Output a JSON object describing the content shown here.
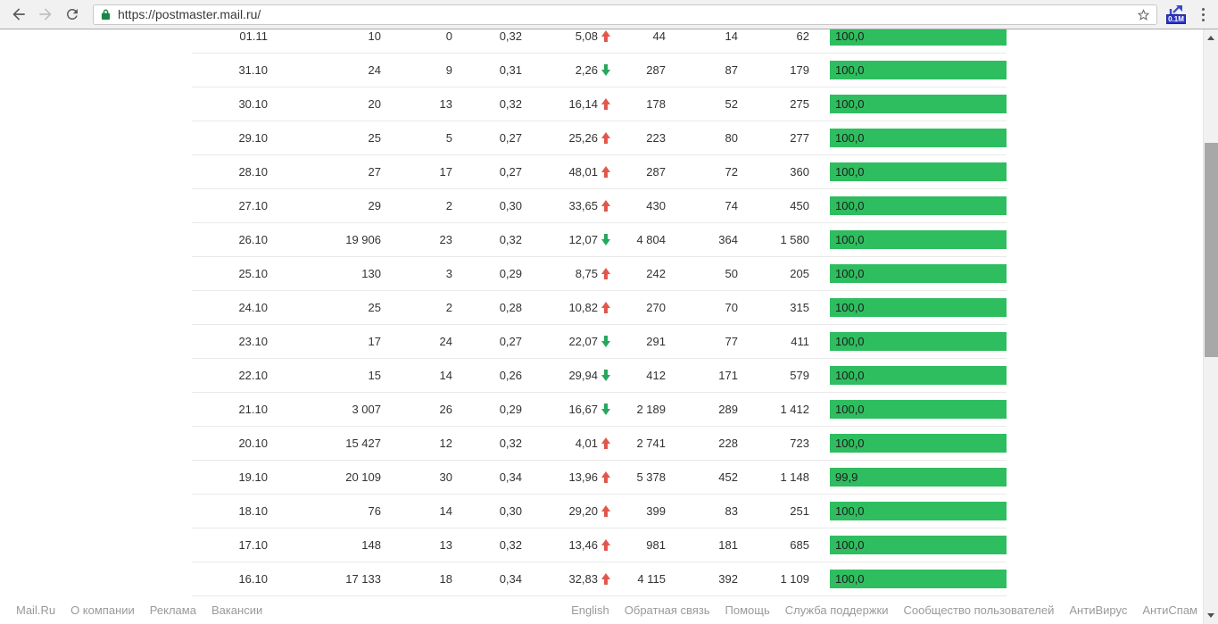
{
  "browser": {
    "url": "https://postmaster.mail.ru/",
    "extension_badge": "0.1M"
  },
  "table": {
    "rows": [
      {
        "date": "01.11",
        "c1": "10",
        "c2": "0",
        "c3": "0,32",
        "trend": "5,08",
        "trend_dir": "up",
        "c4": "44",
        "c5": "14",
        "c6": "62",
        "bar_label": "100,0",
        "bar_percent": 100
      },
      {
        "date": "31.10",
        "c1": "24",
        "c2": "9",
        "c3": "0,31",
        "trend": "2,26",
        "trend_dir": "down",
        "c4": "287",
        "c5": "87",
        "c6": "179",
        "bar_label": "100,0",
        "bar_percent": 100
      },
      {
        "date": "30.10",
        "c1": "20",
        "c2": "13",
        "c3": "0,32",
        "trend": "16,14",
        "trend_dir": "up",
        "c4": "178",
        "c5": "52",
        "c6": "275",
        "bar_label": "100,0",
        "bar_percent": 100
      },
      {
        "date": "29.10",
        "c1": "25",
        "c2": "5",
        "c3": "0,27",
        "trend": "25,26",
        "trend_dir": "up",
        "c4": "223",
        "c5": "80",
        "c6": "277",
        "bar_label": "100,0",
        "bar_percent": 100
      },
      {
        "date": "28.10",
        "c1": "27",
        "c2": "17",
        "c3": "0,27",
        "trend": "48,01",
        "trend_dir": "up",
        "c4": "287",
        "c5": "72",
        "c6": "360",
        "bar_label": "100,0",
        "bar_percent": 100
      },
      {
        "date": "27.10",
        "c1": "29",
        "c2": "2",
        "c3": "0,30",
        "trend": "33,65",
        "trend_dir": "up",
        "c4": "430",
        "c5": "74",
        "c6": "450",
        "bar_label": "100,0",
        "bar_percent": 100
      },
      {
        "date": "26.10",
        "c1": "19 906",
        "c2": "23",
        "c3": "0,32",
        "trend": "12,07",
        "trend_dir": "down",
        "c4": "4 804",
        "c5": "364",
        "c6": "1 580",
        "bar_label": "100,0",
        "bar_percent": 100
      },
      {
        "date": "25.10",
        "c1": "130",
        "c2": "3",
        "c3": "0,29",
        "trend": "8,75",
        "trend_dir": "up",
        "c4": "242",
        "c5": "50",
        "c6": "205",
        "bar_label": "100,0",
        "bar_percent": 100
      },
      {
        "date": "24.10",
        "c1": "25",
        "c2": "2",
        "c3": "0,28",
        "trend": "10,82",
        "trend_dir": "up",
        "c4": "270",
        "c5": "70",
        "c6": "315",
        "bar_label": "100,0",
        "bar_percent": 100
      },
      {
        "date": "23.10",
        "c1": "17",
        "c2": "24",
        "c3": "0,27",
        "trend": "22,07",
        "trend_dir": "down",
        "c4": "291",
        "c5": "77",
        "c6": "411",
        "bar_label": "100,0",
        "bar_percent": 100
      },
      {
        "date": "22.10",
        "c1": "15",
        "c2": "14",
        "c3": "0,26",
        "trend": "29,94",
        "trend_dir": "down",
        "c4": "412",
        "c5": "171",
        "c6": "579",
        "bar_label": "100,0",
        "bar_percent": 100
      },
      {
        "date": "21.10",
        "c1": "3 007",
        "c2": "26",
        "c3": "0,29",
        "trend": "16,67",
        "trend_dir": "down",
        "c4": "2 189",
        "c5": "289",
        "c6": "1 412",
        "bar_label": "100,0",
        "bar_percent": 100
      },
      {
        "date": "20.10",
        "c1": "15 427",
        "c2": "12",
        "c3": "0,32",
        "trend": "4,01",
        "trend_dir": "up",
        "c4": "2 741",
        "c5": "228",
        "c6": "723",
        "bar_label": "100,0",
        "bar_percent": 100
      },
      {
        "date": "19.10",
        "c1": "20 109",
        "c2": "30",
        "c3": "0,34",
        "trend": "13,96",
        "trend_dir": "up",
        "c4": "5 378",
        "c5": "452",
        "c6": "1 148",
        "bar_label": "99,9",
        "bar_percent": 99.9
      },
      {
        "date": "18.10",
        "c1": "76",
        "c2": "14",
        "c3": "0,30",
        "trend": "29,20",
        "trend_dir": "up",
        "c4": "399",
        "c5": "83",
        "c6": "251",
        "bar_label": "100,0",
        "bar_percent": 100
      },
      {
        "date": "17.10",
        "c1": "148",
        "c2": "13",
        "c3": "0,32",
        "trend": "13,46",
        "trend_dir": "up",
        "c4": "981",
        "c5": "181",
        "c6": "685",
        "bar_label": "100,0",
        "bar_percent": 100
      },
      {
        "date": "16.10",
        "c1": "17 133",
        "c2": "18",
        "c3": "0,34",
        "trend": "32,83",
        "trend_dir": "up",
        "c4": "4 115",
        "c5": "392",
        "c6": "1 109",
        "bar_label": "100,0",
        "bar_percent": 100
      }
    ]
  },
  "footer": {
    "left_links": [
      "Mail.Ru",
      "О компании",
      "Реклама",
      "Вакансии"
    ],
    "right_links": [
      "English",
      "Обратная связь",
      "Помощь",
      "Служба поддержки",
      "Сообщество пользователей",
      "АнтиВирус",
      "АнтиСпам"
    ]
  },
  "colors": {
    "bar_green": "#2ebd5f",
    "trend_up": "#e2574c",
    "trend_down": "#27a75e",
    "lock_green": "#188743",
    "extension_blue": "#3b49c4"
  }
}
